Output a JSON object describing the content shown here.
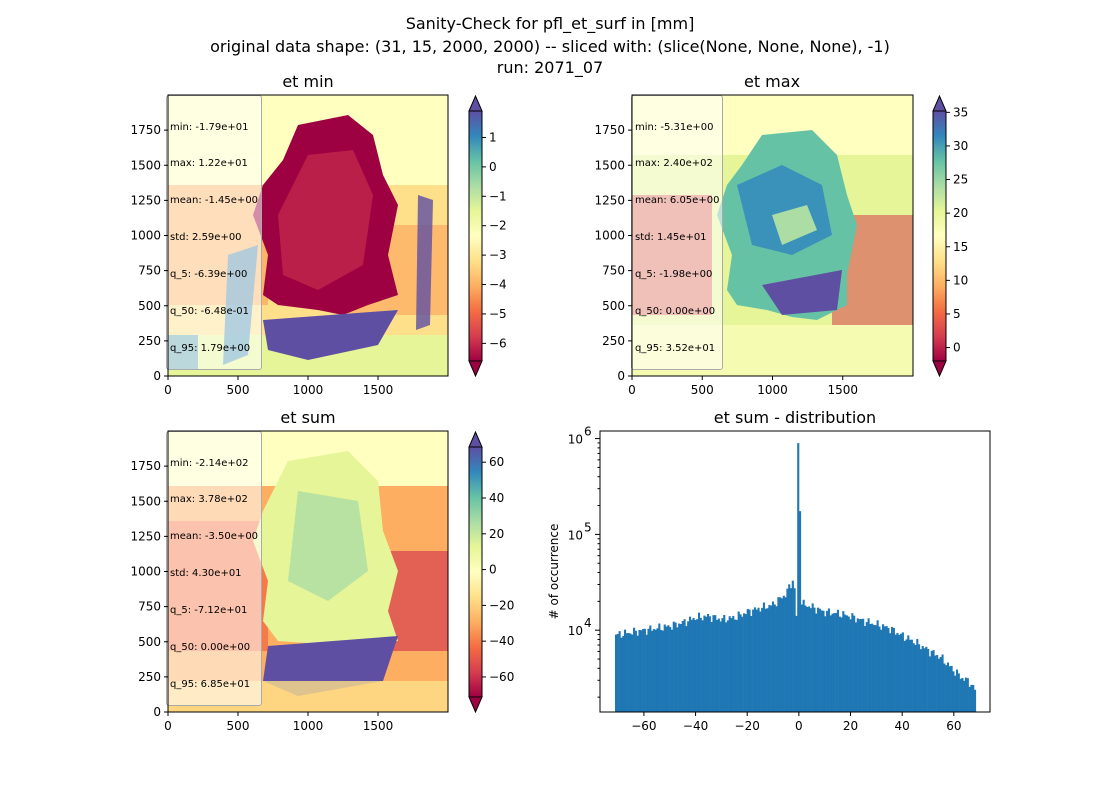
{
  "figure": {
    "suptitle_lines": [
      "Sanity-Check for pfl_et_surf in [mm]",
      "original data shape: (31, 15, 2000, 2000) -- sliced with: (slice(None, None, None), -1)",
      "run: 2071_07"
    ]
  },
  "colors": {
    "spectral": [
      "#9e0142",
      "#d53e4f",
      "#f46d43",
      "#fdae61",
      "#fee08b",
      "#ffffbf",
      "#e6f598",
      "#abdda4",
      "#66c2a5",
      "#3288bd",
      "#5e4fa2"
    ],
    "hist_bar": "#1f77b4"
  },
  "panels": [
    {
      "title": "et min",
      "stats": [
        "min: -1.79e+01",
        "max: 1.22e+01",
        "mean: -1.45e+00",
        "std: 2.59e+00",
        "q_5: -6.39e+00",
        "q_50: -6.48e-01",
        "q_95: 1.79e+00"
      ],
      "colorbar": {
        "vmin": -6.6,
        "vmax": 1.9,
        "ticks": [
          1,
          0,
          -1,
          -2,
          -3,
          -4,
          -5,
          -6
        ],
        "ticklabels": [
          "1",
          "0",
          "−1",
          "−2",
          "−3",
          "−4",
          "−5",
          "−6"
        ]
      },
      "xticks": [
        "0",
        "500",
        "1000",
        "1500"
      ],
      "yticks": [
        "0",
        "250",
        "500",
        "750",
        "1000",
        "1250",
        "1500",
        "1750"
      ]
    },
    {
      "title": "et max",
      "stats": [
        "min: -5.31e+00",
        "max: 2.40e+02",
        "mean: 6.05e+00",
        "std: 1.45e+01",
        "q_5: -1.98e+00",
        "q_50: 0.00e+00",
        "q_95: 3.52e+01"
      ],
      "colorbar": {
        "vmin": -2.0,
        "vmax": 35.2,
        "ticks": [
          35,
          30,
          25,
          20,
          15,
          10,
          5,
          0
        ],
        "ticklabels": [
          "35",
          "30",
          "25",
          "20",
          "15",
          "10",
          "5",
          "0"
        ]
      },
      "xticks": [
        "0",
        "500",
        "1000",
        "1500"
      ],
      "yticks": [
        "0",
        "250",
        "500",
        "750",
        "1000",
        "1250",
        "1500",
        "1750"
      ]
    },
    {
      "title": "et sum",
      "stats": [
        "min: -2.14e+02",
        "max: 3.78e+02",
        "mean: -3.50e+00",
        "std: 4.30e+01",
        "q_5: -7.12e+01",
        "q_50: 0.00e+00",
        "q_95: 6.85e+01"
      ],
      "colorbar": {
        "vmin": -71.2,
        "vmax": 68.5,
        "ticks": [
          60,
          40,
          20,
          0,
          -20,
          -40,
          -60
        ],
        "ticklabels": [
          "60",
          "40",
          "20",
          "0",
          "−20",
          "−40",
          "−60"
        ]
      },
      "xticks": [
        "0",
        "500",
        "1000",
        "1500"
      ],
      "yticks": [
        "0",
        "250",
        "500",
        "750",
        "1000",
        "1250",
        "1500",
        "1750"
      ]
    }
  ],
  "chart_data": {
    "type": "bar",
    "title": "et sum - distribution",
    "xlabel": "",
    "ylabel": "# of occurrence",
    "yscale": "log",
    "xticklabels": [
      "−60",
      "−40",
      "−20",
      "0",
      "20",
      "40",
      "60"
    ],
    "yticklabels": [
      "10",
      "10",
      "10"
    ],
    "ytick_exponents": [
      "4",
      "5",
      "6"
    ],
    "xlim": [
      -77,
      74
    ],
    "ylim": [
      1400,
      1200000
    ],
    "bins": {
      "start": -71.2,
      "end": 68.5,
      "count": 200
    },
    "x": [
      -70,
      -65,
      -60,
      -55,
      -50,
      -45,
      -40,
      -35,
      -30,
      -25,
      -20,
      -15,
      -10,
      -5,
      -2,
      -1,
      0,
      1,
      2,
      5,
      10,
      15,
      20,
      25,
      30,
      35,
      40,
      45,
      50,
      55,
      60,
      63,
      66,
      68
    ],
    "values": [
      9000,
      9500,
      10000,
      10500,
      11000,
      12000,
      13500,
      14000,
      13000,
      13500,
      15500,
      17000,
      18500,
      24000,
      35000,
      14000,
      850000,
      19500,
      18500,
      17500,
      15500,
      15000,
      14000,
      12500,
      11500,
      10500,
      8800,
      7500,
      6200,
      5200,
      3800,
      3200,
      2900,
      2400
    ]
  }
}
